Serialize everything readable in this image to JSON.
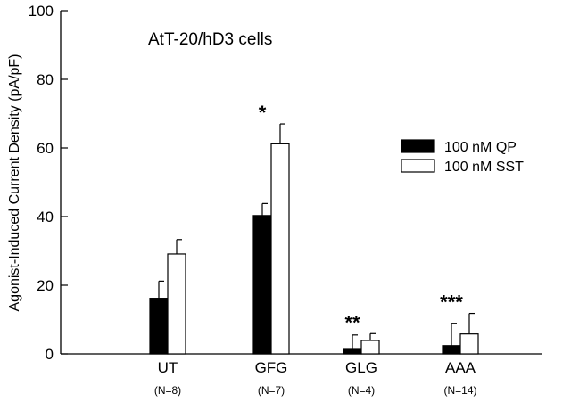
{
  "chart_data": {
    "type": "bar",
    "inset_label": "AtT-20/hD3 cells",
    "xlabel": "",
    "ylabel": "Agonist-Induced Current Density (pA/pF)",
    "ylim": [
      0,
      100
    ],
    "yticks": [
      0,
      20,
      40,
      60,
      80,
      100
    ],
    "categories": [
      "UT",
      "GFG",
      "GLG",
      "AAA"
    ],
    "sample_sizes": [
      "(N=8)",
      "(N=7)",
      "(N=4)",
      "(N=14)"
    ],
    "significance": [
      "",
      "*",
      "**",
      "***"
    ],
    "series": [
      {
        "name": "100 nM QP",
        "fill": "#000000",
        "values": [
          16.2,
          40.3,
          1.3,
          2.4
        ],
        "errors": [
          5.0,
          3.5,
          4.2,
          6.5
        ]
      },
      {
        "name": "100 nM SST",
        "fill": "#ffffff",
        "values": [
          29.1,
          61.2,
          3.9,
          5.8
        ],
        "errors": [
          4.2,
          5.8,
          2.0,
          6.0
        ]
      }
    ],
    "legend_position": "right",
    "grid": false
  }
}
